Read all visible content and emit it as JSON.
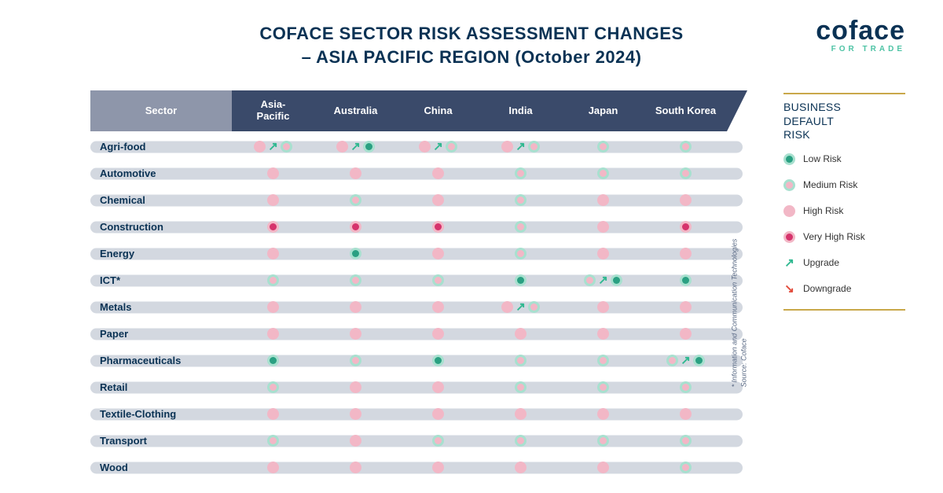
{
  "title_line1": "COFACE SECTOR RISK ASSESSMENT CHANGES",
  "title_line2": "– ASIA PACIFIC REGION (October 2024)",
  "logo": {
    "brand": "coface",
    "tag": "FOR TRADE"
  },
  "colors": {
    "low": {
      "outer": "#a8e0cf",
      "inner": "#2aa082"
    },
    "medium": {
      "outer": "#a8e0cf",
      "inner": "#f2b7c6"
    },
    "high": {
      "outer": "#f2b7c6",
      "inner": "#f2b7c6"
    },
    "veryhigh": {
      "outer": "#f2b7c6",
      "inner": "#d6336c"
    },
    "title_text": "#0a3254",
    "header_sector_bg": "#8e96aa",
    "header_col_bg": "#3a4a6a",
    "row_bg": "#d3d8e0",
    "upgrade_arrow": "#2fb890",
    "downgrade_arrow": "#e24a3a",
    "legend_rule": "#c9a84a",
    "legend_tag": "#4ec3a5"
  },
  "columns": [
    "Sector",
    "Asia-\nPacific",
    "Australia",
    "China",
    "India",
    "Japan",
    "South Korea"
  ],
  "sectors": [
    "Agri-food",
    "Automotive",
    "Chemical",
    "Construction",
    "Energy",
    "ICT*",
    "Metals",
    "Paper",
    "Pharmaceuticals",
    "Retail",
    "Textile-Clothing",
    "Transport",
    "Wood"
  ],
  "cells": [
    [
      {
        "prev": "high",
        "dir": "up",
        "risk": "medium"
      },
      {
        "prev": "high",
        "dir": "up",
        "risk": "low"
      },
      {
        "prev": "high",
        "dir": "up",
        "risk": "medium"
      },
      {
        "prev": "high",
        "dir": "up",
        "risk": "medium"
      },
      {
        "risk": "medium"
      },
      {
        "risk": "medium"
      }
    ],
    [
      {
        "risk": "high"
      },
      {
        "risk": "high"
      },
      {
        "risk": "high"
      },
      {
        "risk": "medium"
      },
      {
        "risk": "medium"
      },
      {
        "risk": "medium"
      }
    ],
    [
      {
        "risk": "high"
      },
      {
        "risk": "medium"
      },
      {
        "risk": "high"
      },
      {
        "risk": "medium"
      },
      {
        "risk": "high"
      },
      {
        "risk": "high"
      }
    ],
    [
      {
        "risk": "veryhigh"
      },
      {
        "risk": "veryhigh"
      },
      {
        "risk": "veryhigh"
      },
      {
        "risk": "medium"
      },
      {
        "risk": "high"
      },
      {
        "risk": "veryhigh"
      }
    ],
    [
      {
        "risk": "high"
      },
      {
        "risk": "low"
      },
      {
        "risk": "high"
      },
      {
        "risk": "medium"
      },
      {
        "risk": "high"
      },
      {
        "risk": "high"
      }
    ],
    [
      {
        "risk": "medium"
      },
      {
        "risk": "medium"
      },
      {
        "risk": "medium"
      },
      {
        "risk": "low"
      },
      {
        "prev": "medium",
        "dir": "up",
        "risk": "low"
      },
      {
        "risk": "low"
      }
    ],
    [
      {
        "risk": "high"
      },
      {
        "risk": "high"
      },
      {
        "risk": "high"
      },
      {
        "prev": "high",
        "dir": "up",
        "risk": "medium"
      },
      {
        "risk": "high"
      },
      {
        "risk": "high"
      }
    ],
    [
      {
        "risk": "high"
      },
      {
        "risk": "high"
      },
      {
        "risk": "high"
      },
      {
        "risk": "high"
      },
      {
        "risk": "high"
      },
      {
        "risk": "high"
      }
    ],
    [
      {
        "risk": "low"
      },
      {
        "risk": "medium"
      },
      {
        "risk": "low"
      },
      {
        "risk": "medium"
      },
      {
        "risk": "medium"
      },
      {
        "prev": "medium",
        "dir": "up",
        "risk": "low"
      }
    ],
    [
      {
        "risk": "medium"
      },
      {
        "risk": "high"
      },
      {
        "risk": "high"
      },
      {
        "risk": "medium"
      },
      {
        "risk": "medium"
      },
      {
        "risk": "medium"
      }
    ],
    [
      {
        "risk": "high"
      },
      {
        "risk": "high"
      },
      {
        "risk": "high"
      },
      {
        "risk": "high"
      },
      {
        "risk": "high"
      },
      {
        "risk": "high"
      }
    ],
    [
      {
        "risk": "medium"
      },
      {
        "risk": "high"
      },
      {
        "risk": "medium"
      },
      {
        "risk": "medium"
      },
      {
        "risk": "medium"
      },
      {
        "risk": "medium"
      }
    ],
    [
      {
        "risk": "high"
      },
      {
        "risk": "high"
      },
      {
        "risk": "high"
      },
      {
        "risk": "high"
      },
      {
        "risk": "high"
      },
      {
        "risk": "medium"
      }
    ]
  ],
  "legend": {
    "title": "BUSINESS\nDEFAULT\nRISK",
    "items": [
      {
        "kind": "dot",
        "risk": "low",
        "label": "Low Risk"
      },
      {
        "kind": "dot",
        "risk": "medium",
        "label": "Medium Risk"
      },
      {
        "kind": "dot",
        "risk": "high",
        "label": "High Risk"
      },
      {
        "kind": "dot",
        "risk": "veryhigh",
        "label": "Very High Risk"
      },
      {
        "kind": "arrow",
        "dir": "up",
        "label": "Upgrade"
      },
      {
        "kind": "arrow",
        "dir": "down",
        "label": "Downgrade"
      }
    ]
  },
  "footnote_line1": "* Information and Communication Technologies",
  "footnote_line2": "Source: Coface"
}
